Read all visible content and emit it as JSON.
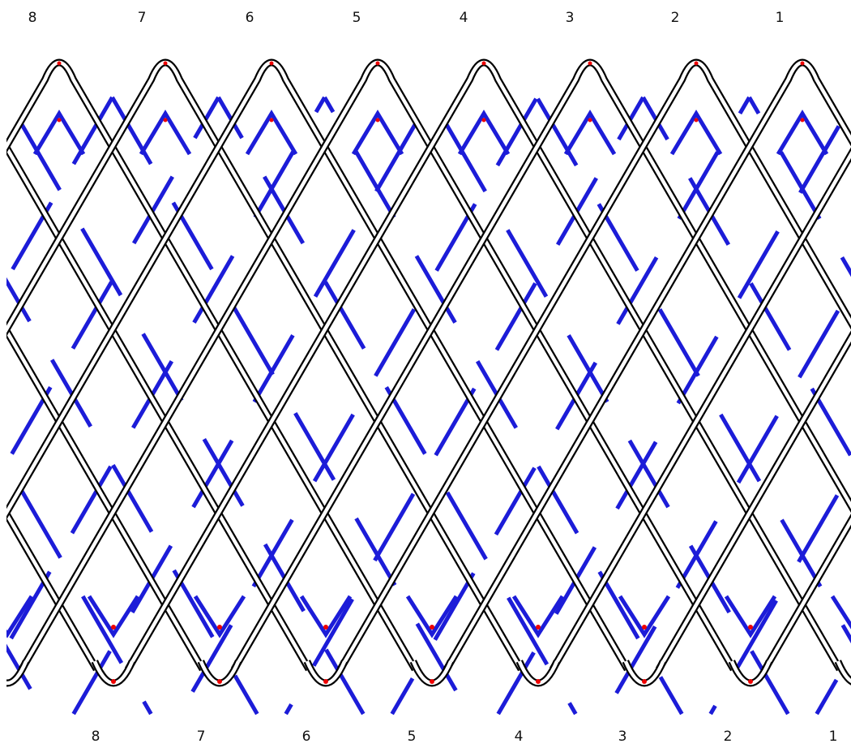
{
  "top_labels": [
    "8",
    "7",
    "6",
    "5",
    "4",
    "3",
    "2",
    "1"
  ],
  "bottom_labels": [
    "8",
    "7",
    "6",
    "5",
    "4",
    "3",
    "2",
    "1"
  ]
}
